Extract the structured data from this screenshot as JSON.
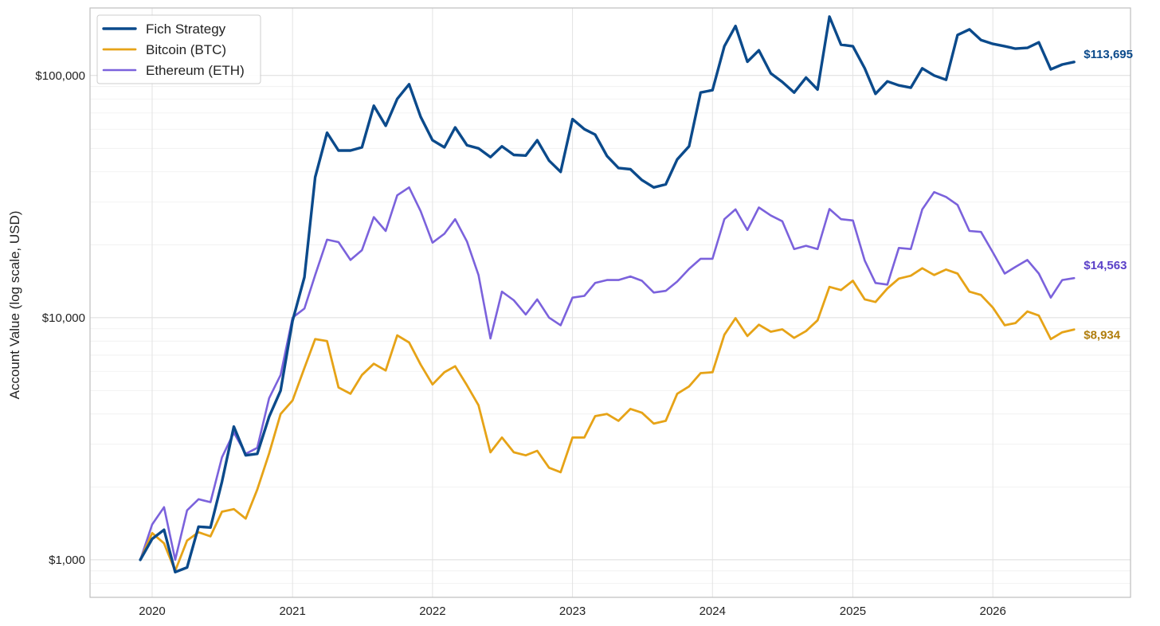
{
  "chart_data": {
    "type": "line",
    "title": "",
    "xlabel": "",
    "ylabel": "Account Value (log scale, USD)",
    "y_scale": "log",
    "ylim": [
      700,
      190000
    ],
    "xlim": [
      "2019-07-23",
      "2026-12-26"
    ],
    "grid": true,
    "legend_position": "top-left",
    "x_ticks": [
      "2020",
      "2021",
      "2022",
      "2023",
      "2024",
      "2025",
      "2026"
    ],
    "y_ticks": [
      {
        "value": 1000,
        "label": "$1,000"
      },
      {
        "value": 10000,
        "label": "$10,000"
      },
      {
        "value": 100000,
        "label": "$100,000"
      }
    ],
    "x": [
      "2019-12-01",
      "2020-01-01",
      "2020-02-01",
      "2020-03-01",
      "2020-04-01",
      "2020-05-01",
      "2020-06-01",
      "2020-07-01",
      "2020-08-01",
      "2020-09-01",
      "2020-10-01",
      "2020-11-01",
      "2020-12-01",
      "2021-01-01",
      "2021-02-01",
      "2021-03-01",
      "2021-04-01",
      "2021-05-01",
      "2021-06-01",
      "2021-07-01",
      "2021-08-01",
      "2021-09-01",
      "2021-10-01",
      "2021-11-01",
      "2021-12-01",
      "2022-01-01",
      "2022-02-01",
      "2022-03-01",
      "2022-04-01",
      "2022-05-01",
      "2022-06-01",
      "2022-07-01",
      "2022-08-01",
      "2022-09-01",
      "2022-10-01",
      "2022-11-01",
      "2022-12-01",
      "2023-01-01",
      "2023-02-01",
      "2023-03-01",
      "2023-04-01",
      "2023-05-01",
      "2023-06-01",
      "2023-07-01",
      "2023-08-01",
      "2023-09-01",
      "2023-10-01",
      "2023-11-01",
      "2023-12-01",
      "2024-01-01",
      "2024-02-01",
      "2024-03-01",
      "2024-04-01",
      "2024-05-01",
      "2024-06-01",
      "2024-07-01",
      "2024-08-01",
      "2024-09-01",
      "2024-10-01",
      "2024-11-01",
      "2024-12-01",
      "2025-01-01",
      "2025-02-01",
      "2025-03-01",
      "2025-04-01",
      "2025-05-01",
      "2025-06-01",
      "2025-07-01",
      "2025-08-01",
      "2025-09-01",
      "2025-10-01",
      "2025-11-01",
      "2025-12-01",
      "2026-01-01",
      "2026-02-01",
      "2026-03-01",
      "2026-04-01",
      "2026-05-01",
      "2026-06-01",
      "2026-07-01",
      "2026-08-01"
    ],
    "series": [
      {
        "name": "Fich Strategy",
        "color": "#0b4a8b",
        "end_label": "$113,695",
        "values": [
          1000,
          1220,
          1330,
          890,
          930,
          1370,
          1360,
          2100,
          3550,
          2700,
          2740,
          3900,
          5000,
          9700,
          14700,
          38000,
          58000,
          49000,
          49000,
          50500,
          75000,
          62000,
          80000,
          92000,
          67500,
          54000,
          50500,
          61000,
          51500,
          50000,
          46000,
          51000,
          47000,
          46700,
          54000,
          44500,
          40000,
          66000,
          60000,
          57000,
          46500,
          41500,
          41000,
          37000,
          34500,
          35500,
          45000,
          51000,
          85000,
          87000,
          132000,
          160000,
          114000,
          127000,
          102000,
          94000,
          85000,
          98000,
          87500,
          175000,
          134000,
          132000,
          107000,
          84000,
          94500,
          91000,
          89000,
          107000,
          100000,
          96000,
          147000,
          155000,
          140000,
          135000,
          132000,
          129000,
          130000,
          137000,
          106000,
          111000,
          113695
        ]
      },
      {
        "name": "Bitcoin (BTC)",
        "color": "#e6a317",
        "end_label": "$8,934",
        "values": [
          1000,
          1290,
          1170,
          900,
          1200,
          1300,
          1250,
          1580,
          1620,
          1480,
          1950,
          2750,
          4000,
          4550,
          6200,
          8150,
          8000,
          5150,
          4850,
          5800,
          6450,
          6050,
          8450,
          7900,
          6400,
          5300,
          5950,
          6300,
          5250,
          4350,
          2780,
          3200,
          2780,
          2700,
          2820,
          2400,
          2300,
          3200,
          3200,
          3920,
          4000,
          3750,
          4200,
          4050,
          3650,
          3750,
          4850,
          5200,
          5900,
          5950,
          8500,
          9950,
          8400,
          9350,
          8750,
          8950,
          8250,
          8800,
          9750,
          13400,
          13000,
          14200,
          11900,
          11600,
          13200,
          14500,
          14900,
          16000,
          15000,
          15800,
          15200,
          12800,
          12400,
          11000,
          9300,
          9500,
          10600,
          10200,
          8150,
          8700,
          8934
        ]
      },
      {
        "name": "Ethereum (ETH)",
        "color": "#7b62dc",
        "end_label": "$14,563",
        "values": [
          1000,
          1400,
          1650,
          1000,
          1600,
          1780,
          1730,
          2650,
          3350,
          2740,
          2900,
          4650,
          5800,
          10000,
          10900,
          15000,
          21000,
          20500,
          17300,
          19000,
          26000,
          22800,
          32000,
          34500,
          27500,
          20400,
          22200,
          25500,
          20600,
          15000,
          8200,
          12800,
          11800,
          10300,
          11900,
          10000,
          9300,
          12100,
          12300,
          13900,
          14300,
          14300,
          14800,
          14200,
          12700,
          12900,
          14100,
          15900,
          17500,
          17500,
          25500,
          28000,
          23000,
          28500,
          26400,
          25000,
          19200,
          19800,
          19200,
          28100,
          25500,
          25200,
          17200,
          13900,
          13700,
          19400,
          19200,
          28000,
          33000,
          31500,
          29200,
          22800,
          22600,
          18600,
          15200,
          16200,
          17300,
          15200,
          12100,
          14300,
          14563
        ]
      }
    ]
  }
}
